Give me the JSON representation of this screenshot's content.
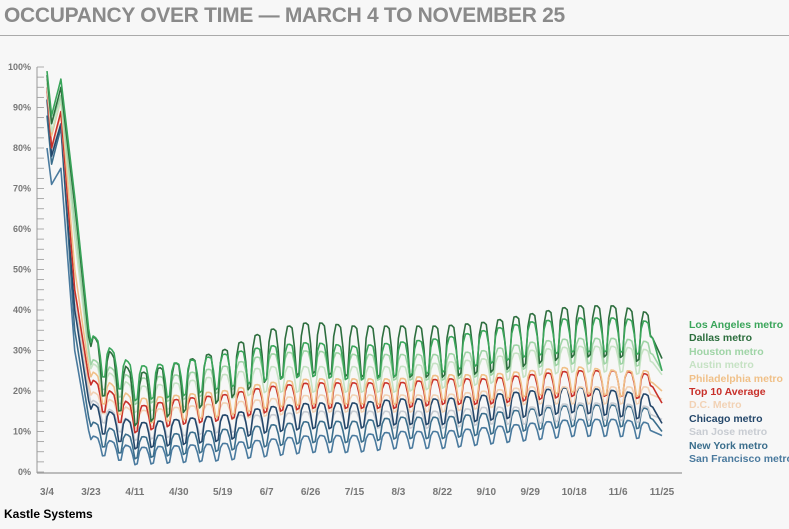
{
  "chart_data": {
    "type": "line",
    "title": "OCCUPANCY OVER TIME — MARCH 4 TO NOVEMBER 25",
    "xlabel": "",
    "ylabel": "",
    "ylim": [
      0,
      100
    ],
    "y_ticks": [
      "0%",
      "10%",
      "20%",
      "30%",
      "40%",
      "50%",
      "60%",
      "70%",
      "80%",
      "90%",
      "100%"
    ],
    "y_tick_values": [
      0,
      10,
      20,
      30,
      40,
      50,
      60,
      70,
      80,
      90,
      100
    ],
    "x_ticks": [
      "3/4",
      "3/23",
      "4/11",
      "4/30",
      "5/19",
      "6/7",
      "6/26",
      "7/15",
      "8/3",
      "8/22",
      "9/10",
      "9/29",
      "10/18",
      "11/6",
      "11/25"
    ],
    "x_tick_days": [
      0,
      19,
      38,
      57,
      76,
      95,
      114,
      133,
      152,
      171,
      190,
      209,
      228,
      247,
      266
    ],
    "x_days": [
      0,
      2,
      6,
      12,
      19,
      38,
      57,
      76,
      95,
      114,
      133,
      152,
      171,
      190,
      209,
      228,
      247,
      262,
      266
    ],
    "weekly_pattern_note": "weekday-high / weekend-low cycle",
    "legend_position": "right",
    "grid": false,
    "series": [
      {
        "name": "Los Angeles metro",
        "color": "#3aa55a",
        "weekly_amplitude": 4,
        "values": [
          99,
          88,
          97,
          68,
          30,
          22,
          23,
          25,
          27,
          28,
          27,
          28,
          29,
          31,
          33,
          34,
          34,
          33,
          25
        ]
      },
      {
        "name": "Dallas metro",
        "color": "#2d6e3e",
        "weekly_amplitude": 6,
        "values": [
          98,
          86,
          95,
          66,
          28,
          18,
          21,
          24,
          29,
          31,
          30,
          30,
          30,
          31,
          33,
          35,
          35,
          33,
          28
        ]
      },
      {
        "name": "Houston metro",
        "color": "#9fd4a6",
        "weekly_amplitude": 3,
        "values": [
          97,
          86,
          93,
          62,
          25,
          20,
          21,
          23,
          26,
          27,
          26,
          26,
          26,
          27,
          29,
          30,
          30,
          29,
          25
        ]
      },
      {
        "name": "Austin metro",
        "color": "#c6e2c4",
        "weekly_amplitude": 3,
        "values": [
          96,
          84,
          92,
          58,
          24,
          18,
          19,
          21,
          23,
          23,
          23,
          23,
          24,
          25,
          27,
          28,
          28,
          27,
          24
        ]
      },
      {
        "name": "Philadelphia metro",
        "color": "#f0c088",
        "weekly_amplitude": 3,
        "values": [
          96,
          83,
          92,
          50,
          22,
          15,
          16,
          17,
          19,
          20,
          20,
          20,
          21,
          21,
          22,
          23,
          22,
          22,
          20
        ]
      },
      {
        "name": "Top 10 Average",
        "color": "#c8302a",
        "weekly_amplitude": 3,
        "values": [
          95,
          80,
          89,
          45,
          20,
          13,
          15,
          16,
          18,
          19,
          19,
          19,
          20,
          20,
          21,
          22,
          22,
          21,
          17
        ]
      },
      {
        "name": "D.C. Metro",
        "color": "#f2d2b5",
        "weekly_amplitude": 2,
        "values": [
          94,
          80,
          88,
          45,
          18,
          13,
          14,
          15,
          16,
          17,
          17,
          17,
          17,
          18,
          19,
          19,
          19,
          19,
          18
        ]
      },
      {
        "name": "Chicago metro",
        "color": "#24476a",
        "weekly_amplitude": 3,
        "values": [
          92,
          78,
          86,
          40,
          14,
          9,
          10,
          11,
          13,
          14,
          14,
          15,
          15,
          16,
          17,
          18,
          17,
          16,
          12
        ]
      },
      {
        "name": "San Jose metro",
        "color": "#c8ccd2",
        "weekly_amplitude": 2,
        "values": [
          93,
          79,
          86,
          42,
          16,
          10,
          11,
          12,
          12,
          13,
          13,
          13,
          13,
          14,
          14,
          15,
          15,
          14,
          13
        ]
      },
      {
        "name": "New York metro",
        "color": "#3b6e8c",
        "weekly_amplitude": 2.5,
        "values": [
          88,
          76,
          85,
          35,
          10,
          6,
          7,
          8,
          9,
          10,
          10,
          11,
          11,
          12,
          13,
          14,
          14,
          13,
          10
        ]
      },
      {
        "name": "San Francisco metro",
        "color": "#4a7a9e",
        "weekly_amplitude": 2,
        "values": [
          80,
          71,
          75,
          30,
          7,
          4,
          4.5,
          5,
          6,
          7,
          7,
          8,
          8,
          9,
          10,
          11,
          11,
          10,
          9
        ]
      }
    ]
  },
  "credit": "Kastle Systems"
}
